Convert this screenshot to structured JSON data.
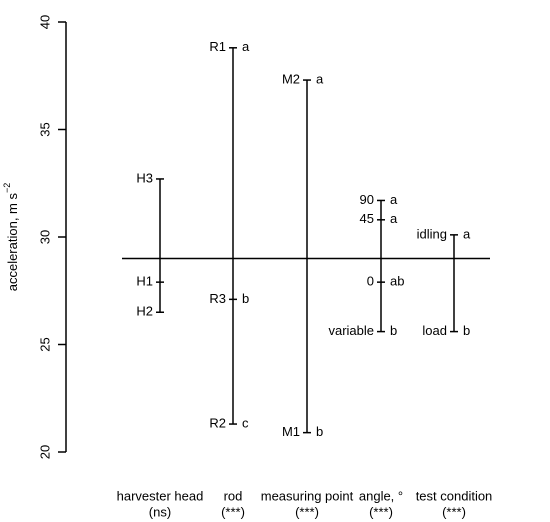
{
  "chart_data": {
    "type": "design",
    "ylabel": "acceleration, m s",
    "ylabel_superscript": "−2",
    "ylim": [
      20,
      40
    ],
    "yticks": [
      20,
      25,
      30,
      35,
      40
    ],
    "grand_mean": 29.0,
    "factors": [
      {
        "name": "harvester head",
        "significance": "(ns)",
        "levels": [
          {
            "label": "H3",
            "value": 32.7
          },
          {
            "label": "H1",
            "value": 27.9
          },
          {
            "label": "H2",
            "value": 26.5
          }
        ]
      },
      {
        "name": "rod",
        "significance": "(***)",
        "levels": [
          {
            "label": "R1",
            "value": 38.8,
            "letter": "a"
          },
          {
            "label": "R3",
            "value": 27.1,
            "letter": "b"
          },
          {
            "label": "R2",
            "value": 21.3,
            "letter": "c"
          }
        ]
      },
      {
        "name": "measuring point",
        "significance": "(***)",
        "levels": [
          {
            "label": "M2",
            "value": 37.3,
            "letter": "a"
          },
          {
            "label": "M1",
            "value": 20.9,
            "letter": "b"
          }
        ]
      },
      {
        "name": "angle, °",
        "significance": "(***)",
        "levels": [
          {
            "label": "90",
            "value": 31.7,
            "letter": "a"
          },
          {
            "label": "45",
            "value": 30.8,
            "letter": "a"
          },
          {
            "label": "0",
            "value": 27.9,
            "letter": "ab"
          },
          {
            "label": "variable",
            "value": 25.6,
            "letter": "b"
          }
        ]
      },
      {
        "name": "test condition",
        "significance": "(***)",
        "levels": [
          {
            "label": "idling",
            "value": 30.1,
            "letter": "a"
          },
          {
            "label": "load",
            "value": 25.6,
            "letter": "b"
          }
        ]
      }
    ]
  }
}
